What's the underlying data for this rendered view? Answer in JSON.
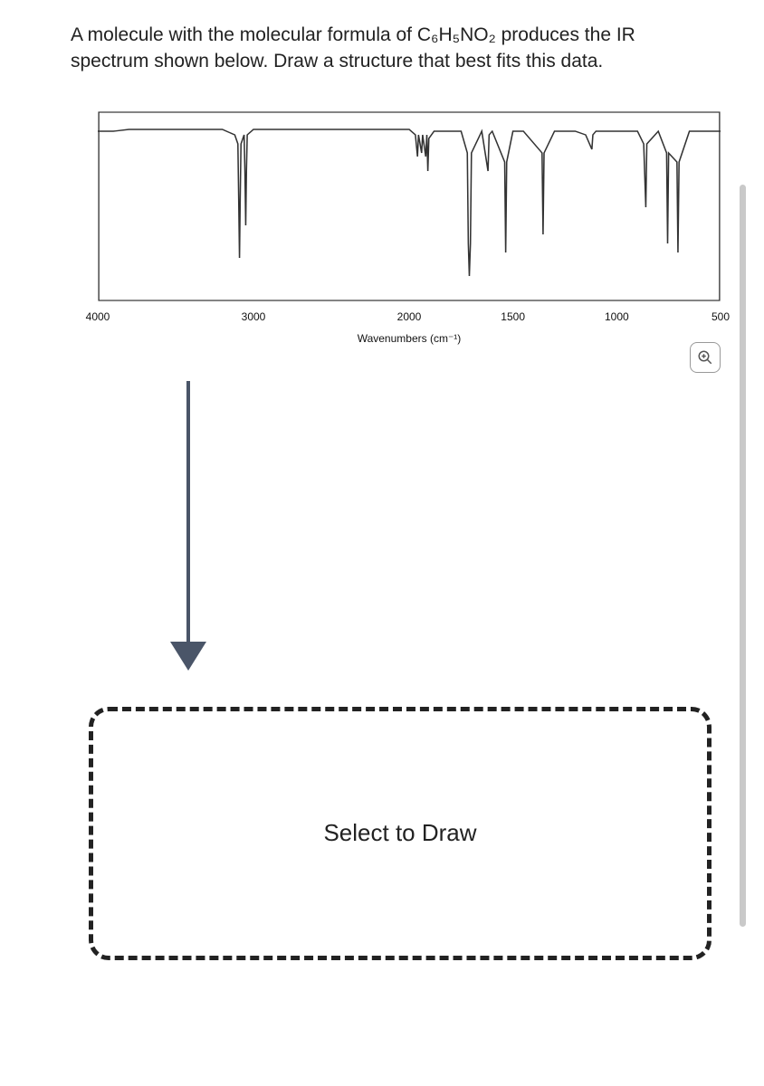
{
  "question": {
    "text_html": "A molecule with the molecular formula of C₆H₅NO₂ produces the IR spectrum shown below. Draw a structure that best fits this data.",
    "font_size": 21,
    "text_color": "#222222"
  },
  "spectrum": {
    "type": "line",
    "xlim": [
      4000,
      500
    ],
    "ylim": [
      0,
      100
    ],
    "ylabel": "",
    "xlabel": "Wavenumbers (cm⁻¹)",
    "label_fontsize": 12,
    "tick_fontsize": 12,
    "x_ticks": [
      4000,
      3000,
      2000,
      1500,
      1000,
      500
    ],
    "background_color": "#ffffff",
    "line_color": "#333333",
    "line_width": 1.4,
    "frame_color": "#333333",
    "frame_width": 1.2,
    "grid": false,
    "series": [
      {
        "x": 4000,
        "y": 92
      },
      {
        "x": 3900,
        "y": 92
      },
      {
        "x": 3800,
        "y": 93
      },
      {
        "x": 3700,
        "y": 93
      },
      {
        "x": 3600,
        "y": 93
      },
      {
        "x": 3500,
        "y": 93
      },
      {
        "x": 3400,
        "y": 93
      },
      {
        "x": 3300,
        "y": 93
      },
      {
        "x": 3200,
        "y": 93
      },
      {
        "x": 3120,
        "y": 90
      },
      {
        "x": 3100,
        "y": 85
      },
      {
        "x": 3095,
        "y": 55
      },
      {
        "x": 3090,
        "y": 22
      },
      {
        "x": 3085,
        "y": 55
      },
      {
        "x": 3080,
        "y": 85
      },
      {
        "x": 3060,
        "y": 90
      },
      {
        "x": 3055,
        "y": 70
      },
      {
        "x": 3050,
        "y": 40
      },
      {
        "x": 3045,
        "y": 70
      },
      {
        "x": 3040,
        "y": 90
      },
      {
        "x": 3000,
        "y": 93
      },
      {
        "x": 2900,
        "y": 93
      },
      {
        "x": 2800,
        "y": 93
      },
      {
        "x": 2700,
        "y": 93
      },
      {
        "x": 2600,
        "y": 93
      },
      {
        "x": 2500,
        "y": 93
      },
      {
        "x": 2400,
        "y": 93
      },
      {
        "x": 2300,
        "y": 93
      },
      {
        "x": 2200,
        "y": 93
      },
      {
        "x": 2100,
        "y": 93
      },
      {
        "x": 2000,
        "y": 93
      },
      {
        "x": 1970,
        "y": 90
      },
      {
        "x": 1960,
        "y": 78
      },
      {
        "x": 1955,
        "y": 90
      },
      {
        "x": 1940,
        "y": 80
      },
      {
        "x": 1935,
        "y": 90
      },
      {
        "x": 1920,
        "y": 78
      },
      {
        "x": 1915,
        "y": 90
      },
      {
        "x": 1910,
        "y": 70
      },
      {
        "x": 1905,
        "y": 88
      },
      {
        "x": 1880,
        "y": 92
      },
      {
        "x": 1800,
        "y": 92
      },
      {
        "x": 1750,
        "y": 92
      },
      {
        "x": 1720,
        "y": 80
      },
      {
        "x": 1715,
        "y": 30
      },
      {
        "x": 1710,
        "y": 12
      },
      {
        "x": 1705,
        "y": 30
      },
      {
        "x": 1700,
        "y": 80
      },
      {
        "x": 1650,
        "y": 92
      },
      {
        "x": 1620,
        "y": 70
      },
      {
        "x": 1615,
        "y": 90
      },
      {
        "x": 1600,
        "y": 92
      },
      {
        "x": 1540,
        "y": 75
      },
      {
        "x": 1535,
        "y": 25
      },
      {
        "x": 1530,
        "y": 75
      },
      {
        "x": 1500,
        "y": 92
      },
      {
        "x": 1450,
        "y": 92
      },
      {
        "x": 1360,
        "y": 80
      },
      {
        "x": 1355,
        "y": 35
      },
      {
        "x": 1350,
        "y": 80
      },
      {
        "x": 1300,
        "y": 92
      },
      {
        "x": 1200,
        "y": 92
      },
      {
        "x": 1150,
        "y": 90
      },
      {
        "x": 1120,
        "y": 82
      },
      {
        "x": 1115,
        "y": 90
      },
      {
        "x": 1100,
        "y": 92
      },
      {
        "x": 1000,
        "y": 92
      },
      {
        "x": 900,
        "y": 92
      },
      {
        "x": 870,
        "y": 85
      },
      {
        "x": 860,
        "y": 50
      },
      {
        "x": 855,
        "y": 85
      },
      {
        "x": 800,
        "y": 92
      },
      {
        "x": 760,
        "y": 80
      },
      {
        "x": 755,
        "y": 30
      },
      {
        "x": 750,
        "y": 80
      },
      {
        "x": 710,
        "y": 75
      },
      {
        "x": 705,
        "y": 25
      },
      {
        "x": 700,
        "y": 75
      },
      {
        "x": 650,
        "y": 92
      },
      {
        "x": 600,
        "y": 92
      },
      {
        "x": 500,
        "y": 92
      }
    ]
  },
  "zoom_button": {
    "icon": "magnify-plus",
    "border_color": "#999999",
    "background": "#ffffff"
  },
  "arrow": {
    "color": "#4a5568",
    "line_width": 4,
    "head_width": 40,
    "head_height": 32
  },
  "draw_area": {
    "placeholder": "Select to Draw",
    "font_size": 26,
    "text_color": "#222222",
    "border_color": "#222222",
    "border_style": "dashed",
    "border_width": 5,
    "border_radius": 22,
    "background": "#ffffff"
  },
  "scrollbar": {
    "color": "#c9c9c9",
    "width": 7
  }
}
